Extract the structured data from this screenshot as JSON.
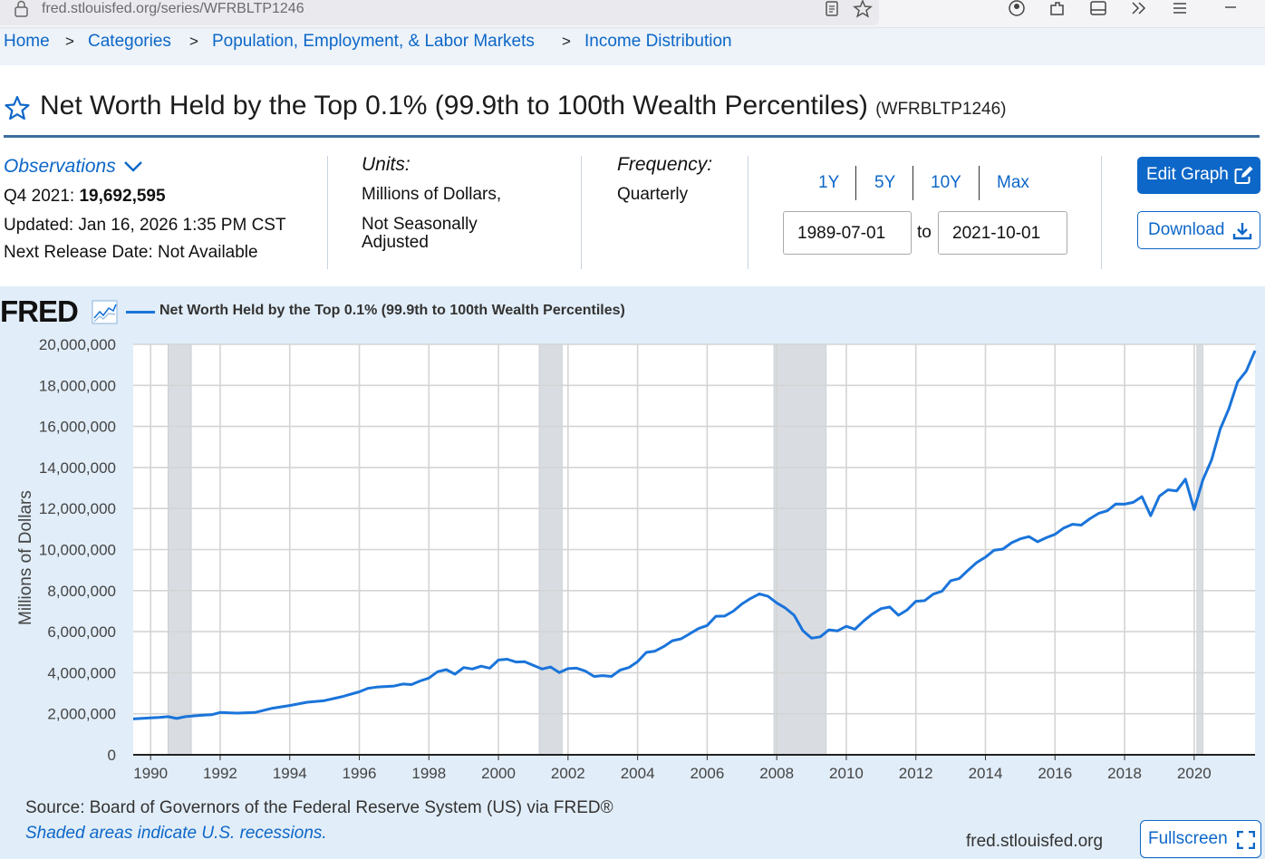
{
  "browser": {
    "url": "fred.stlouisfed.org/series/WFRBLTP1246"
  },
  "breadcrumb": {
    "items": [
      "Home",
      "Categories",
      "Population, Employment, & Labor Markets",
      "Income Distribution"
    ],
    "separator": ">"
  },
  "series": {
    "title": "Net Worth Held by the Top 0.1% (99.9th to 100th Wealth Percentiles)",
    "id": "(WFRBLTP1246)"
  },
  "observations": {
    "label": "Observations",
    "period": "Q4 2021:",
    "value": "19,692,595",
    "updated": "Updated: Jan 16, 2026 1:35 PM CST",
    "next_release": "Next Release Date: Not Available"
  },
  "units": {
    "label": "Units:",
    "line1": "Millions of Dollars,",
    "line2": "Not Seasonally",
    "line3": "Adjusted"
  },
  "frequency": {
    "label": "Frequency:",
    "value": "Quarterly"
  },
  "range": {
    "buttons": [
      "1Y",
      "5Y",
      "10Y",
      "Max"
    ],
    "start": "1989-07-01",
    "to": "to",
    "end": "2021-10-01"
  },
  "actions": {
    "edit_graph": "Edit Graph",
    "download": "Download",
    "fullscreen": "Fullscreen"
  },
  "graph": {
    "logo": "FRED",
    "legend": "Net Worth Held by the Top 0.1% (99.9th to 100th Wealth Percentiles)",
    "source": "Source: Board of Governors of the Federal Reserve System (US) via FRED®",
    "shade_note": "Shaded areas indicate U.S. recessions.",
    "site": "fred.stlouisfed.org"
  },
  "colors": {
    "accent": "#0d67c8",
    "series": "#1a74da",
    "recession": "#d9dde2",
    "panel": "#e1edf8"
  },
  "chart_data": {
    "type": "line",
    "title": "Net Worth Held by the Top 0.1% (99.9th to 100th Wealth Percentiles)",
    "ylabel": "Millions of Dollars",
    "xlabel": "",
    "xlim": [
      1989.5,
      2021.75
    ],
    "ylim": [
      0,
      20000000
    ],
    "yticks": [
      0,
      2000000,
      4000000,
      6000000,
      8000000,
      10000000,
      12000000,
      14000000,
      16000000,
      18000000,
      20000000
    ],
    "ytick_labels": [
      "0",
      "2,000,000",
      "4,000,000",
      "6,000,000",
      "8,000,000",
      "10,000,000",
      "12,000,000",
      "14,000,000",
      "16,000,000",
      "18,000,000",
      "20,000,000"
    ],
    "xticks": [
      1990,
      1992,
      1994,
      1996,
      1998,
      2000,
      2002,
      2004,
      2006,
      2008,
      2010,
      2012,
      2014,
      2016,
      2018,
      2020
    ],
    "xtick_labels": [
      "1990",
      "1992",
      "1994",
      "1996",
      "1998",
      "2000",
      "2002",
      "2004",
      "2006",
      "2008",
      "2010",
      "2012",
      "2014",
      "2016",
      "2018",
      "2020"
    ],
    "recessions": [
      [
        1990.5,
        1991.17
      ],
      [
        2001.17,
        2001.83
      ],
      [
        2007.92,
        2009.42
      ],
      [
        2020.08,
        2020.25
      ]
    ],
    "grid": true,
    "series": [
      {
        "name": "Net Worth Held by the Top 0.1% (99.9th to 100th Wealth Percentiles)",
        "points": [
          [
            1989.5,
            1750000
          ],
          [
            1990.0,
            1800000
          ],
          [
            1990.25,
            1820000
          ],
          [
            1990.5,
            1860000
          ],
          [
            1990.75,
            1770000
          ],
          [
            1991.0,
            1860000
          ],
          [
            1991.5,
            1930000
          ],
          [
            1991.75,
            1950000
          ],
          [
            1992.0,
            2060000
          ],
          [
            1992.5,
            2030000
          ],
          [
            1993.0,
            2060000
          ],
          [
            1993.5,
            2270000
          ],
          [
            1994.0,
            2400000
          ],
          [
            1994.5,
            2560000
          ],
          [
            1995.0,
            2640000
          ],
          [
            1995.5,
            2830000
          ],
          [
            1996.0,
            3070000
          ],
          [
            1996.25,
            3240000
          ],
          [
            1996.5,
            3300000
          ],
          [
            1997.0,
            3350000
          ],
          [
            1997.25,
            3450000
          ],
          [
            1997.5,
            3420000
          ],
          [
            1997.75,
            3600000
          ],
          [
            1998.0,
            3740000
          ],
          [
            1998.25,
            4050000
          ],
          [
            1998.5,
            4150000
          ],
          [
            1998.75,
            3930000
          ],
          [
            1999.0,
            4250000
          ],
          [
            1999.25,
            4180000
          ],
          [
            1999.5,
            4320000
          ],
          [
            1999.75,
            4220000
          ],
          [
            2000.0,
            4620000
          ],
          [
            2000.25,
            4660000
          ],
          [
            2000.5,
            4520000
          ],
          [
            2000.75,
            4540000
          ],
          [
            2001.0,
            4360000
          ],
          [
            2001.25,
            4180000
          ],
          [
            2001.5,
            4280000
          ],
          [
            2001.75,
            4010000
          ],
          [
            2002.0,
            4200000
          ],
          [
            2002.25,
            4220000
          ],
          [
            2002.5,
            4080000
          ],
          [
            2002.75,
            3820000
          ],
          [
            2003.0,
            3860000
          ],
          [
            2003.25,
            3820000
          ],
          [
            2003.5,
            4130000
          ],
          [
            2003.75,
            4250000
          ],
          [
            2004.0,
            4540000
          ],
          [
            2004.25,
            4990000
          ],
          [
            2004.5,
            5050000
          ],
          [
            2004.75,
            5270000
          ],
          [
            2005.0,
            5560000
          ],
          [
            2005.25,
            5650000
          ],
          [
            2005.5,
            5900000
          ],
          [
            2005.75,
            6150000
          ],
          [
            2006.0,
            6300000
          ],
          [
            2006.25,
            6750000
          ],
          [
            2006.5,
            6760000
          ],
          [
            2006.75,
            7000000
          ],
          [
            2007.0,
            7350000
          ],
          [
            2007.25,
            7620000
          ],
          [
            2007.5,
            7840000
          ],
          [
            2007.75,
            7720000
          ],
          [
            2008.0,
            7400000
          ],
          [
            2008.25,
            7150000
          ],
          [
            2008.5,
            6800000
          ],
          [
            2008.75,
            6050000
          ],
          [
            2009.0,
            5680000
          ],
          [
            2009.25,
            5750000
          ],
          [
            2009.5,
            6090000
          ],
          [
            2009.75,
            6040000
          ],
          [
            2010.0,
            6260000
          ],
          [
            2010.25,
            6120000
          ],
          [
            2010.5,
            6520000
          ],
          [
            2010.75,
            6860000
          ],
          [
            2011.0,
            7120000
          ],
          [
            2011.25,
            7200000
          ],
          [
            2011.5,
            6800000
          ],
          [
            2011.75,
            7060000
          ],
          [
            2012.0,
            7480000
          ],
          [
            2012.25,
            7510000
          ],
          [
            2012.5,
            7830000
          ],
          [
            2012.75,
            7970000
          ],
          [
            2013.0,
            8480000
          ],
          [
            2013.25,
            8590000
          ],
          [
            2013.5,
            8990000
          ],
          [
            2013.75,
            9370000
          ],
          [
            2014.0,
            9630000
          ],
          [
            2014.25,
            9970000
          ],
          [
            2014.5,
            10020000
          ],
          [
            2014.75,
            10330000
          ],
          [
            2015.0,
            10520000
          ],
          [
            2015.25,
            10630000
          ],
          [
            2015.5,
            10380000
          ],
          [
            2015.75,
            10580000
          ],
          [
            2016.0,
            10740000
          ],
          [
            2016.25,
            11050000
          ],
          [
            2016.5,
            11230000
          ],
          [
            2016.75,
            11190000
          ],
          [
            2017.0,
            11500000
          ],
          [
            2017.25,
            11760000
          ],
          [
            2017.5,
            11890000
          ],
          [
            2017.75,
            12220000
          ],
          [
            2018.0,
            12210000
          ],
          [
            2018.25,
            12300000
          ],
          [
            2018.5,
            12580000
          ],
          [
            2018.75,
            11650000
          ],
          [
            2019.0,
            12600000
          ],
          [
            2019.25,
            12910000
          ],
          [
            2019.5,
            12860000
          ],
          [
            2019.75,
            13430000
          ],
          [
            2020.0,
            11950000
          ],
          [
            2020.25,
            13390000
          ],
          [
            2020.5,
            14360000
          ],
          [
            2020.75,
            15870000
          ],
          [
            2021.0,
            16870000
          ],
          [
            2021.25,
            18170000
          ],
          [
            2021.5,
            18700000
          ],
          [
            2021.75,
            19692595
          ]
        ]
      }
    ]
  }
}
